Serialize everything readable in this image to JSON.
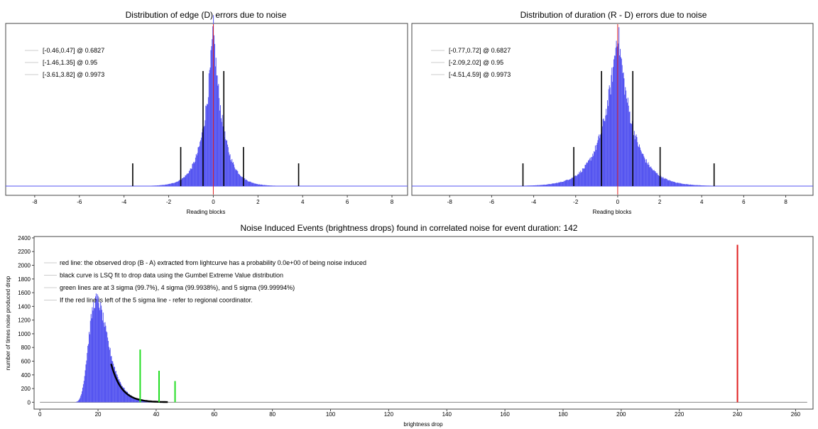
{
  "colors": {
    "histogram": "#5555f0",
    "observed_line": "#e02020",
    "sigma_lines": "#22dd22",
    "fit_curve": "#000000",
    "ci_bars": "#000000",
    "zero_line": "#e02020",
    "frame": "#444444"
  },
  "chart_data": [
    {
      "type": "bar",
      "title": "Distribution of edge (D) errors due to noise",
      "xlabel": "Reading blocks",
      "ylabel": "",
      "xlim": [
        -9.3,
        8.7
      ],
      "xticks": [
        -8,
        -6,
        -4,
        -2,
        0,
        2,
        4,
        6,
        8
      ],
      "distribution": {
        "shape": "laplace-like",
        "center": 0,
        "scale": 0.42
      },
      "zero_marker": 0,
      "legend": [
        {
          "label": "[-0.46,0.47] @ 0.6827",
          "lo": -0.46,
          "hi": 0.47,
          "level": 0.6827
        },
        {
          "label": "[-1.46,1.35] @ 0.95",
          "lo": -1.46,
          "hi": 1.35,
          "level": 0.95
        },
        {
          "label": "[-3.61,3.82] @ 0.9973",
          "lo": -3.61,
          "hi": 3.82,
          "level": 0.9973
        }
      ],
      "legend_position": "top-left",
      "grid": false
    },
    {
      "type": "bar",
      "title": "Distribution of duration (R - D) errors due to noise",
      "xlabel": "Reading blocks",
      "ylabel": "",
      "xlim": [
        -9.8,
        9.3
      ],
      "xticks": [
        -8,
        -6,
        -4,
        -2,
        0,
        2,
        4,
        6,
        8
      ],
      "distribution": {
        "shape": "laplace-like",
        "center": 0,
        "scale": 0.68
      },
      "zero_marker": 0,
      "legend": [
        {
          "label": "[-0.77,0.72] @ 0.6827",
          "lo": -0.77,
          "hi": 0.72,
          "level": 0.6827
        },
        {
          "label": "[-2.09,2.02] @ 0.95",
          "lo": -2.09,
          "hi": 2.02,
          "level": 0.95
        },
        {
          "label": "[-4.51,4.59] @ 0.9973",
          "lo": -4.51,
          "hi": 4.59,
          "level": 0.9973
        }
      ],
      "legend_position": "top-left",
      "grid": false
    },
    {
      "type": "bar",
      "title": "Noise Induced Events (brightness drops) found in correlated noise for event duration: 142",
      "xlabel": "brightness drop",
      "ylabel": "number of times noise produced drop",
      "xlim": [
        -2,
        266
      ],
      "ylim": [
        -100,
        2420
      ],
      "xticks": [
        0,
        20,
        40,
        60,
        80,
        100,
        120,
        140,
        160,
        180,
        200,
        220,
        240,
        260
      ],
      "yticks": [
        0,
        200,
        400,
        600,
        800,
        1000,
        1200,
        1400,
        1600,
        1800,
        2000,
        2200,
        2400
      ],
      "histogram": {
        "shape": "gumbel-like",
        "mode": 19.5,
        "peak": 1500,
        "x_start": 11,
        "x_end": 42
      },
      "fit_curve": {
        "x_start": 24.5,
        "x_end": 44,
        "y_start": 560,
        "y_end": 0
      },
      "observed_drop": {
        "x": 240,
        "y": 2300
      },
      "sigma_lines": [
        {
          "sigma": 3,
          "x": 34.5,
          "y": 770
        },
        {
          "sigma": 4,
          "x": 41,
          "y": 460
        },
        {
          "sigma": 5,
          "x": 46.5,
          "y": 310
        }
      ],
      "legend": [
        {
          "label": "red line: the observed drop (B - A) extracted from lightcurve has a probability 0.0e+00 of being noise induced"
        },
        {
          "label": "black curve is LSQ fit to drop data using the Gumbel Extreme Value distribution"
        },
        {
          "label": "green lines are at 3 sigma (99.7%), 4 sigma (99.9938%), and 5 sigma (99.99994%)"
        },
        {
          "label": "If the red line is left of the 5 sigma line - refer to regional coordinator."
        }
      ],
      "legend_position": "top-left",
      "grid": false
    }
  ]
}
